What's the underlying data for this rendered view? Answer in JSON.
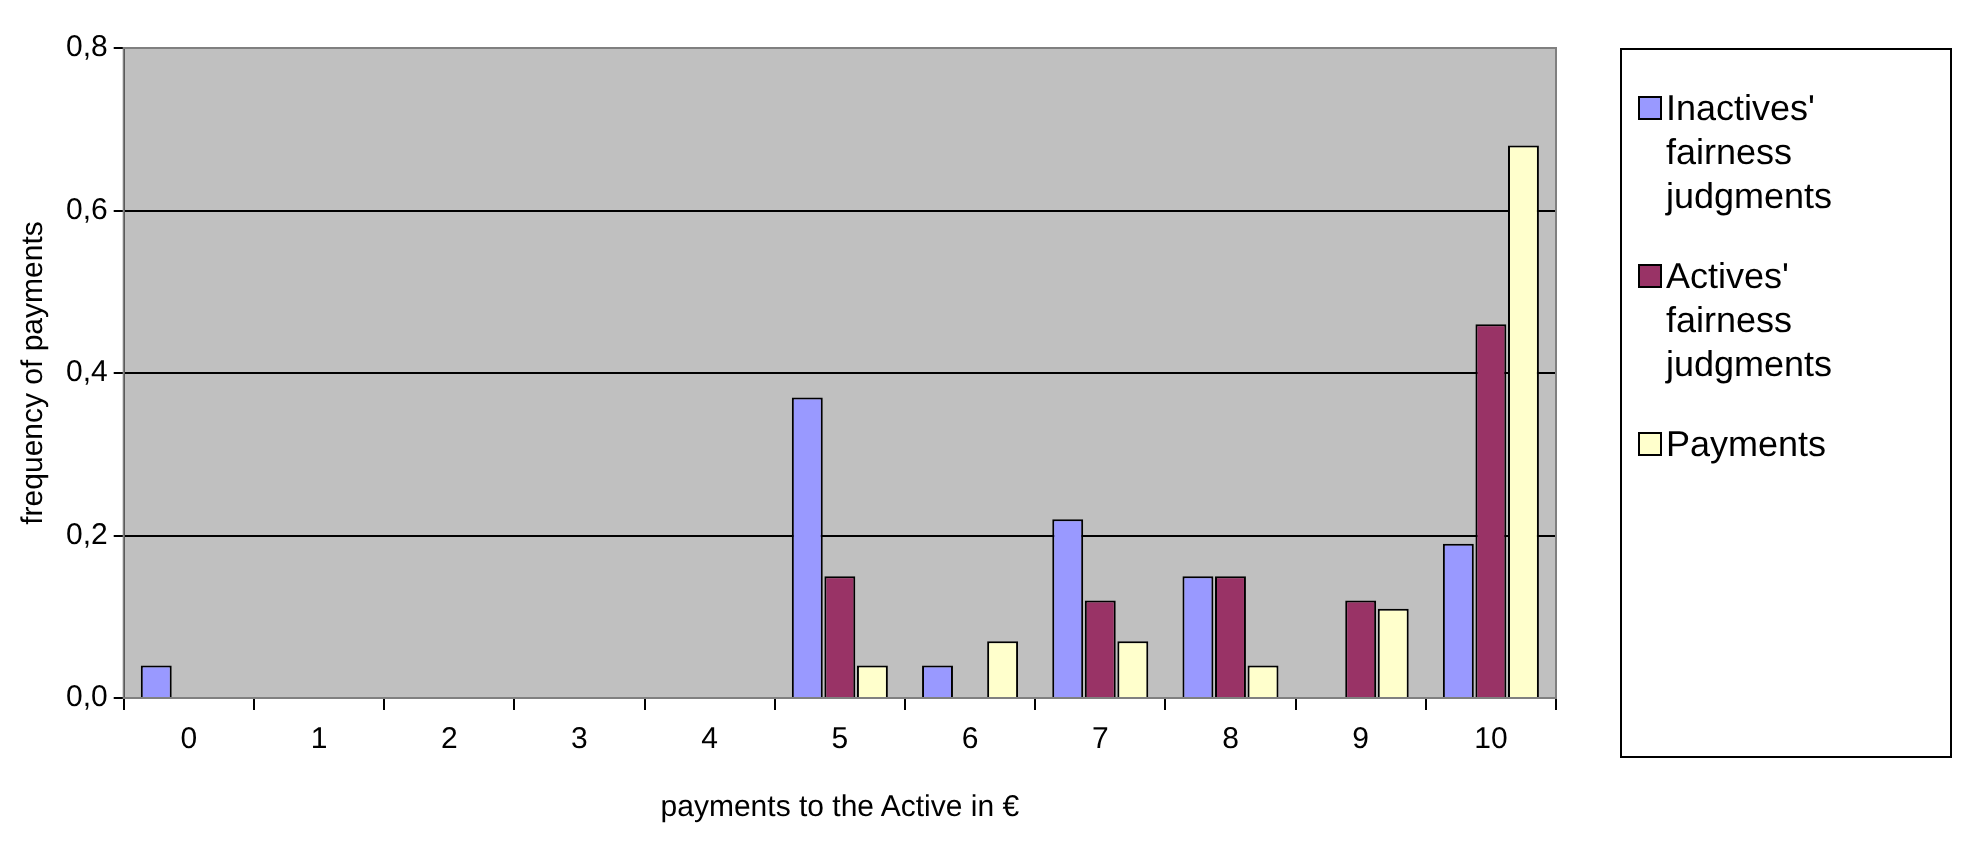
{
  "chart_data": {
    "type": "bar",
    "xlabel": "payments to the Active in €",
    "ylabel": "frequency of payments",
    "categories": [
      "0",
      "1",
      "2",
      "3",
      "4",
      "5",
      "6",
      "7",
      "8",
      "9",
      "10"
    ],
    "series": [
      {
        "name": "Inactives' fairness judgments",
        "color": "#9999ff",
        "values": [
          0.04,
          0,
          0,
          0,
          0,
          0.37,
          0.04,
          0.22,
          0.15,
          0,
          0.19
        ]
      },
      {
        "name": "Actives' fairness judgments",
        "color": "#993366",
        "values": [
          0,
          0,
          0,
          0,
          0,
          0.15,
          0,
          0.12,
          0.15,
          0.12,
          0.46
        ]
      },
      {
        "name": "Payments",
        "color": "#ffffcc",
        "values": [
          0,
          0,
          0,
          0,
          0,
          0.04,
          0.07,
          0.07,
          0.04,
          0.11,
          0.68
        ]
      }
    ],
    "ylim": [
      0,
      0.8
    ],
    "yticks": [
      {
        "value": 0,
        "label": "0,0"
      },
      {
        "value": 0.2,
        "label": "0,2"
      },
      {
        "value": 0.4,
        "label": "0,4"
      },
      {
        "value": 0.6,
        "label": "0,6"
      },
      {
        "value": 0.8,
        "label": "0,8"
      }
    ],
    "grid": "y",
    "legend": "right"
  }
}
